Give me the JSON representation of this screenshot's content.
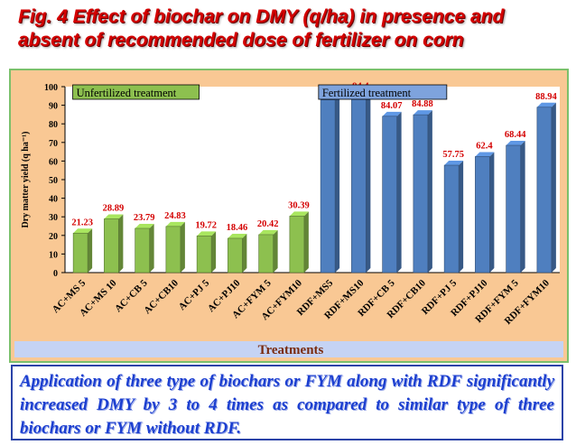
{
  "title": "Fig. 4 Effect of biochar on DMY (q/ha) in presence and absent of recommended dose of fertilizer on  corn",
  "caption": "Application of three type of biochars or FYM along with RDF significantly increased DMY  by 3 to 4  times as compared to similar type of three biochars or FYM without RDF.",
  "colors": {
    "unfertilized": "#8dc04f",
    "fertilized": "#4f7fbf",
    "label": "#d40000",
    "panel": "#f9c894",
    "xlabel_band": "#c5d3f4"
  },
  "chart_data": {
    "type": "bar",
    "categories": [
      "AC+MS 5",
      "AC+MS 10",
      "AC+CB 5",
      "AC+CB10",
      "AC+PJ 5",
      "AC+PJ10",
      "AC+FYM 5",
      "AC+FYM10",
      "RDF+MS5",
      "RDF+MS10",
      "RDF+CB 5",
      "RDF+CB10",
      "RDF+PJ 5",
      "RDF+PJ10",
      "RDF+FYM 5",
      "RDF+FYM10"
    ],
    "values": [
      21.23,
      28.89,
      23.79,
      24.83,
      19.72,
      18.46,
      20.42,
      30.39,
      92.89,
      94.4,
      84.07,
      84.88,
      57.75,
      62.4,
      68.44,
      88.94
    ],
    "value_labels": [
      "21.23",
      "28.89",
      "23.79",
      "24.83",
      "19.72",
      "18.46",
      "20.42",
      "30.39",
      "92.89",
      "94.4",
      "84.07",
      "84.88",
      "57.75",
      "62.4",
      "68.44",
      "88.94"
    ],
    "groups": [
      {
        "name": "Unfertilized treatment",
        "count": 8
      },
      {
        "name": "Fertilized treatment",
        "count": 8
      }
    ],
    "ylabel": "Dry matter yield (q ha⁻¹)",
    "xlabel": "Treatments",
    "ylim": [
      0,
      100
    ],
    "yticks": [
      0,
      10,
      20,
      30,
      40,
      50,
      60,
      70,
      80,
      90,
      100
    ],
    "grid": false,
    "bar_style": "3d"
  }
}
